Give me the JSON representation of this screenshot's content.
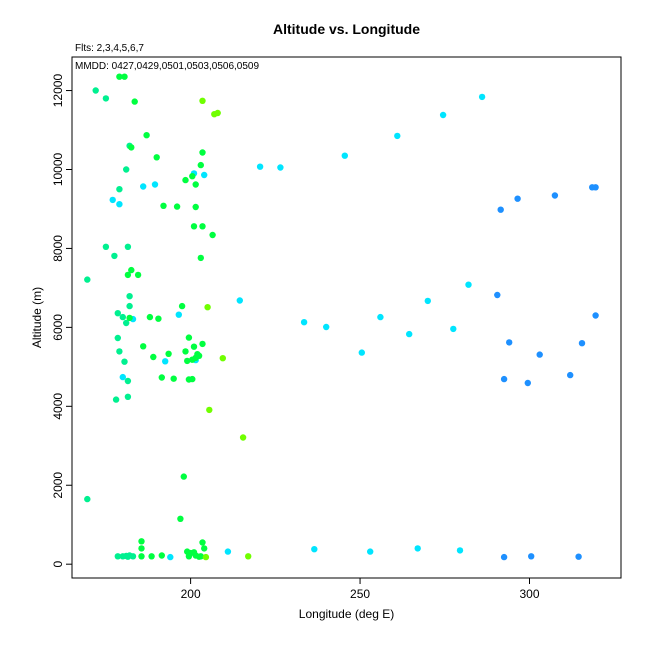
{
  "chart_data": {
    "type": "scatter",
    "title": "Altitude vs. Longitude",
    "annotations": {
      "flights": "Flts: 2,3,4,5,6,7",
      "dates": "MMDD: 0427,0429,0501,0503,0506,0509"
    },
    "xlabel": "Longitude (deg E)",
    "ylabel": "Altitude (m)",
    "xlim": [
      165,
      327
    ],
    "ylim": [
      -350,
      12850
    ],
    "x_ticks": [
      200,
      250,
      300
    ],
    "y_ticks": [
      0,
      2000,
      4000,
      6000,
      8000,
      10000,
      12000
    ],
    "x_tick_labels": [
      "200",
      "250",
      "300"
    ],
    "y_tick_labels": [
      "0",
      "2000",
      "4000",
      "6000",
      "8000",
      "10000",
      "12000"
    ],
    "grid": false,
    "legend": "none",
    "series": [
      {
        "color": "#1e90ff",
        "points": [
          [
            291.5,
            8980
          ],
          [
            296.5,
            9260
          ],
          [
            307.5,
            9340
          ],
          [
            318.5,
            9550
          ],
          [
            319.5,
            9550
          ],
          [
            290.5,
            6820
          ],
          [
            319.5,
            6300
          ],
          [
            294,
            5620
          ],
          [
            303,
            5310
          ],
          [
            315.5,
            5600
          ],
          [
            292.5,
            4690
          ],
          [
            299.5,
            4590
          ],
          [
            312,
            4790
          ],
          [
            292.5,
            180
          ],
          [
            300.5,
            200
          ],
          [
            314.5,
            190
          ]
        ]
      },
      {
        "color": "#00e5ff",
        "points": [
          [
            286,
            11840
          ],
          [
            274.5,
            11380
          ],
          [
            261,
            10850
          ],
          [
            245.5,
            10350
          ],
          [
            226.5,
            10050
          ],
          [
            220.5,
            10070
          ],
          [
            204,
            9860
          ],
          [
            189.5,
            9620
          ],
          [
            186,
            9570
          ],
          [
            201,
            9900
          ],
          [
            177,
            9230
          ],
          [
            179,
            9120
          ],
          [
            282,
            7080
          ],
          [
            270,
            6670
          ],
          [
            256,
            6260
          ],
          [
            277.5,
            5960
          ],
          [
            264.5,
            5830
          ],
          [
            250.5,
            5360
          ],
          [
            240,
            6010
          ],
          [
            233.5,
            6130
          ],
          [
            214.5,
            6680
          ],
          [
            196.5,
            6320
          ],
          [
            183,
            6210
          ],
          [
            201.5,
            5170
          ],
          [
            192.5,
            5140
          ],
          [
            180,
            4740
          ],
          [
            211,
            320
          ],
          [
            236.5,
            380
          ],
          [
            253,
            320
          ],
          [
            267,
            400
          ],
          [
            279.5,
            350
          ],
          [
            194,
            180
          ]
        ]
      },
      {
        "color": "#00f090",
        "points": [
          [
            172,
            12000
          ],
          [
            175,
            11800
          ],
          [
            182,
            10600
          ],
          [
            181,
            10000
          ],
          [
            179,
            9500
          ],
          [
            175,
            8040
          ],
          [
            177.5,
            7810
          ],
          [
            181.5,
            8040
          ],
          [
            169.5,
            7210
          ],
          [
            182,
            6790
          ],
          [
            182,
            6540
          ],
          [
            178.5,
            6360
          ],
          [
            180,
            6260
          ],
          [
            181,
            6110
          ],
          [
            178.5,
            5730
          ],
          [
            179,
            5390
          ],
          [
            180.5,
            5130
          ],
          [
            181.5,
            4640
          ],
          [
            181.5,
            4240
          ],
          [
            178,
            4170
          ],
          [
            169.5,
            1650
          ],
          [
            178.5,
            200
          ],
          [
            180,
            200
          ],
          [
            181,
            210
          ],
          [
            182,
            220
          ],
          [
            181.5,
            190
          ],
          [
            183,
            200
          ]
        ]
      },
      {
        "color": "#00ff40",
        "points": [
          [
            179,
            12350
          ],
          [
            180.5,
            12350
          ],
          [
            183.5,
            11720
          ],
          [
            182.5,
            10560
          ],
          [
            187,
            10870
          ],
          [
            190,
            10310
          ],
          [
            203.5,
            10430
          ],
          [
            203,
            10110
          ],
          [
            201.5,
            9620
          ],
          [
            198.5,
            9730
          ],
          [
            200.5,
            9830
          ],
          [
            192,
            9080
          ],
          [
            196,
            9060
          ],
          [
            201.5,
            9050
          ],
          [
            203.5,
            8560
          ],
          [
            201,
            8560
          ],
          [
            206.5,
            8340
          ],
          [
            203,
            7760
          ],
          [
            182.5,
            7450
          ],
          [
            181.5,
            7330
          ],
          [
            184.5,
            7330
          ],
          [
            182,
            6240
          ],
          [
            188,
            6260
          ],
          [
            190.5,
            6220
          ],
          [
            197.5,
            6540
          ],
          [
            199.5,
            5740
          ],
          [
            186,
            5520
          ],
          [
            189,
            5250
          ],
          [
            193.5,
            5330
          ],
          [
            198.5,
            5390
          ],
          [
            201,
            5510
          ],
          [
            202,
            5320
          ],
          [
            203.5,
            5580
          ],
          [
            201.5,
            5230
          ],
          [
            199,
            5150
          ],
          [
            200.5,
            5180
          ],
          [
            202.5,
            5280
          ],
          [
            191.5,
            4730
          ],
          [
            195,
            4700
          ],
          [
            199.5,
            4680
          ],
          [
            200.5,
            4690
          ],
          [
            185.5,
            580
          ],
          [
            185.5,
            400
          ],
          [
            185.5,
            200
          ],
          [
            188.5,
            200
          ],
          [
            191.5,
            220
          ],
          [
            197,
            1150
          ],
          [
            198,
            2220
          ],
          [
            199,
            320
          ],
          [
            200,
            280
          ],
          [
            201,
            300
          ],
          [
            203,
            200
          ],
          [
            199.5,
            200
          ],
          [
            201.5,
            220
          ],
          [
            202.5,
            190
          ],
          [
            203.5,
            550
          ],
          [
            204,
            400
          ]
        ]
      },
      {
        "color": "#70ff00",
        "points": [
          [
            207,
            11400
          ],
          [
            208,
            11430
          ],
          [
            205,
            6510
          ],
          [
            209.5,
            5220
          ],
          [
            205.5,
            3910
          ],
          [
            215.5,
            3210
          ],
          [
            203.5,
            11740
          ],
          [
            217,
            200
          ],
          [
            204.5,
            180
          ]
        ]
      }
    ]
  }
}
